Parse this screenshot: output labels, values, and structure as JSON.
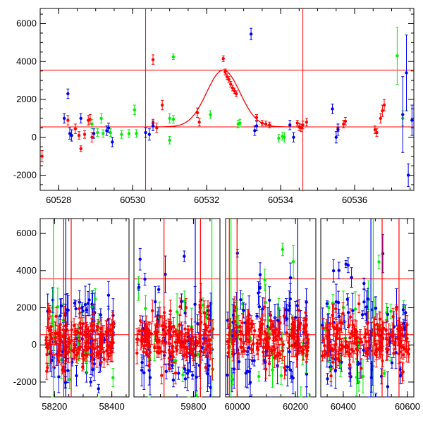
{
  "colors": {
    "red": "#ff0000",
    "green": "#00ee00",
    "blue": "#0000ee",
    "axis": "#000000"
  },
  "chart_data": [
    {
      "type": "scatter",
      "title": "",
      "xlabel": "",
      "ylabel": "",
      "xlim": [
        60527.5,
        60537.6
      ],
      "ylim": [
        -2800,
        6800
      ],
      "x_ticks": [
        60528,
        60530,
        60532,
        60534,
        60536
      ],
      "y_ticks": [
        -2000,
        0,
        2000,
        4000,
        6000
      ],
      "hlines": [
        550,
        3550
      ],
      "vlines": [
        60530.35,
        60534.6
      ],
      "model_curve": {
        "peak_x": 60532.45,
        "peak_y": 3550,
        "baseline": 550,
        "sigma": 0.45
      },
      "series": [
        {
          "color": "red",
          "points": [
            [
              60527.55,
              -1000,
              300
            ],
            [
              60528.25,
              900,
              250
            ],
            [
              60528.45,
              450,
              250
            ],
            [
              60528.55,
              100,
              200
            ],
            [
              60528.6,
              -600,
              150
            ],
            [
              60528.7,
              150,
              200
            ],
            [
              60528.8,
              900,
              250
            ],
            [
              60528.85,
              950,
              250
            ],
            [
              60528.9,
              0,
              250
            ],
            [
              60530.55,
              4100,
              250
            ],
            [
              60530.55,
              750,
              200
            ],
            [
              60530.65,
              500,
              250
            ],
            [
              60530.8,
              1700,
              250
            ],
            [
              60531.75,
              1300,
              250
            ],
            [
              60531.8,
              800,
              200
            ],
            [
              60532.45,
              4150,
              150
            ],
            [
              60532.5,
              3450,
              150
            ],
            [
              60532.55,
              3200,
              150
            ],
            [
              60532.6,
              3050,
              150
            ],
            [
              60532.65,
              2800,
              150
            ],
            [
              60532.7,
              2600,
              150
            ],
            [
              60532.75,
              2450,
              150
            ],
            [
              60532.8,
              2300,
              150
            ],
            [
              60533.35,
              1050,
              150
            ],
            [
              60533.5,
              750,
              150
            ],
            [
              60533.6,
              700,
              150
            ],
            [
              60533.7,
              650,
              150
            ],
            [
              60534.45,
              750,
              150
            ],
            [
              60534.5,
              550,
              200
            ],
            [
              60534.55,
              500,
              200
            ],
            [
              60534.6,
              650,
              200
            ],
            [
              60534.7,
              800,
              200
            ],
            [
              60535.55,
              500,
              200
            ],
            [
              60535.7,
              700,
              200
            ],
            [
              60535.75,
              850,
              200
            ],
            [
              60536.55,
              400,
              200
            ],
            [
              60536.6,
              250,
              200
            ],
            [
              60536.7,
              1000,
              250
            ],
            [
              60536.75,
              1400,
              300
            ],
            [
              60536.8,
              1700,
              300
            ]
          ]
        },
        {
          "color": "green",
          "points": [
            [
              60528.9,
              700,
              250
            ],
            [
              60529.05,
              250,
              200
            ],
            [
              60529.15,
              1000,
              250
            ],
            [
              60529.2,
              200,
              200
            ],
            [
              60529.4,
              250,
              200
            ],
            [
              60529.7,
              150,
              200
            ],
            [
              60529.9,
              200,
              200
            ],
            [
              60530.05,
              1450,
              250
            ],
            [
              60530.1,
              200,
              200
            ],
            [
              60531.0,
              -150,
              200
            ],
            [
              60531.0,
              1000,
              250
            ],
            [
              60531.1,
              4250,
              150
            ],
            [
              60531.1,
              950,
              200
            ],
            [
              60532.1,
              1200,
              200
            ],
            [
              60532.85,
              700,
              200
            ],
            [
              60532.9,
              750,
              200
            ],
            [
              60533.95,
              -50,
              200
            ],
            [
              60534.05,
              50,
              200
            ],
            [
              60534.1,
              0,
              250
            ],
            [
              60537.15,
              4300,
              1500
            ],
            [
              60537.3,
              1000,
              400
            ]
          ]
        },
        {
          "color": "blue",
          "points": [
            [
              60528.15,
              1000,
              250
            ],
            [
              60528.25,
              2300,
              250
            ],
            [
              60528.3,
              200,
              300
            ],
            [
              60528.35,
              100,
              300
            ],
            [
              60528.6,
              1000,
              250
            ],
            [
              60528.95,
              200,
              250
            ],
            [
              60529.3,
              350,
              250
            ],
            [
              60529.35,
              500,
              250
            ],
            [
              60529.45,
              -250,
              250
            ],
            [
              60530.35,
              250,
              250
            ],
            [
              60530.45,
              150,
              300
            ],
            [
              60530.55,
              600,
              250
            ],
            [
              60533.2,
              5450,
              300
            ],
            [
              60533.3,
              350,
              250
            ],
            [
              60533.35,
              600,
              250
            ],
            [
              60534.25,
              650,
              250
            ],
            [
              60534.35,
              0,
              250
            ],
            [
              60535.4,
              1500,
              250
            ],
            [
              60535.5,
              0,
              300
            ],
            [
              60535.55,
              400,
              300
            ],
            [
              60537.3,
              1200,
              2000
            ],
            [
              60537.4,
              3400,
              2000
            ],
            [
              60537.45,
              -2000,
              600
            ],
            [
              60537.55,
              900,
              800
            ]
          ]
        }
      ]
    },
    {
      "type": "scatter",
      "title": "",
      "xlabel": "",
      "ylabel": "",
      "ylim": [
        -2800,
        6800
      ],
      "y_ticks": [
        -2000,
        0,
        2000,
        4000,
        6000
      ],
      "hlines": [
        550,
        3550
      ],
      "segments": [
        {
          "xlim": [
            58150,
            58460
          ],
          "x_ticks": [
            58200,
            58400
          ]
        },
        {
          "xlim": [
            59620,
            59880
          ],
          "x_ticks": [
            59800
          ]
        },
        {
          "xlim": [
            59960,
            60270
          ],
          "x_ticks": [
            60000,
            60200
          ]
        },
        {
          "xlim": [
            60330,
            60620
          ],
          "x_ticks": [
            60400,
            60600
          ]
        }
      ],
      "clusters": [
        {
          "x_range": [
            58170,
            58410
          ],
          "spread_y": [
            -300,
            600
          ]
        },
        {
          "x_range": [
            59625,
            59860
          ],
          "spread_y": [
            -100,
            1000
          ]
        },
        {
          "x_range": [
            59965,
            60250
          ],
          "spread_y": [
            -200,
            800
          ]
        },
        {
          "x_range": [
            60335,
            60605
          ],
          "spread_y": [
            -200,
            800
          ]
        }
      ]
    }
  ]
}
